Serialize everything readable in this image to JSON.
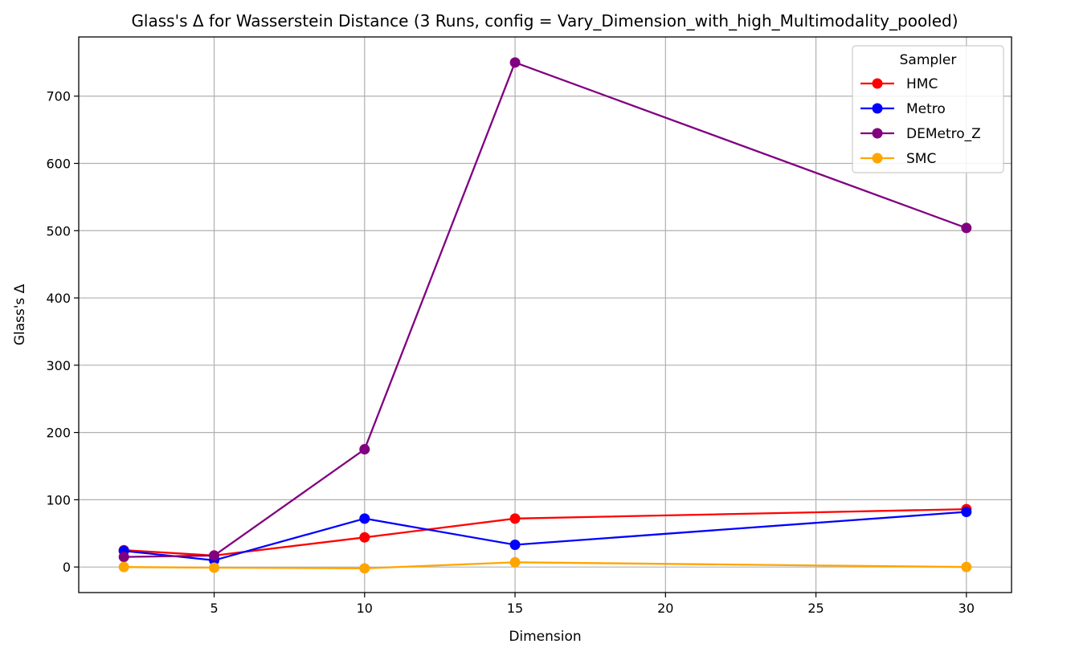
{
  "chart_data": {
    "type": "line",
    "title": "Glass's Δ for Wasserstein Distance (3 Runs, config = Vary_Dimension_with_high_Multimodality_pooled)",
    "xlabel": "Dimension",
    "ylabel": "Glass's Δ",
    "x": [
      2,
      5,
      10,
      15,
      30
    ],
    "xlim": [
      0.5,
      31.5
    ],
    "ylim": [
      -38,
      788
    ],
    "xticks": [
      5,
      10,
      15,
      20,
      25,
      30
    ],
    "yticks": [
      0,
      100,
      200,
      300,
      400,
      500,
      600,
      700
    ],
    "grid": true,
    "markers": true,
    "legend": {
      "title": "Sampler",
      "placement": "top-right"
    },
    "series": [
      {
        "name": "HMC",
        "color": "#ff0000",
        "values": [
          25,
          17,
          44,
          72,
          86
        ]
      },
      {
        "name": "Metro",
        "color": "#0000ff",
        "values": [
          24,
          10,
          72,
          33,
          82
        ]
      },
      {
        "name": "DEMetro_Z",
        "color": "#800080",
        "values": [
          15,
          17,
          175,
          750,
          504
        ]
      },
      {
        "name": "SMC",
        "color": "#ffa500",
        "values": [
          0,
          -1,
          -2,
          7,
          0
        ]
      }
    ]
  }
}
